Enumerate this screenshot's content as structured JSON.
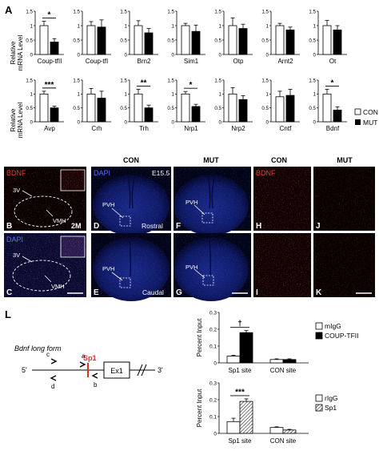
{
  "panel_letters": {
    "A": "A",
    "B": "B",
    "C": "C",
    "D": "D",
    "E": "E",
    "F": "F",
    "G": "G",
    "H": "H",
    "I": "I",
    "J": "J",
    "K": "K",
    "L": "L"
  },
  "panel_a": {
    "ylabel_line1": "Relative",
    "ylabel_line2": "mRNA Level",
    "legend": {
      "con": "CON",
      "mut": "MUT"
    }
  },
  "micrographs": {
    "b_stain": "BDNF",
    "c_stain": "DAPI",
    "d_stain": "DAPI",
    "h_stain": "BDNF",
    "b_age": "2M",
    "d_age": "E15.5",
    "region_3v": "3V",
    "region_vmh": "VMH",
    "region_pvh": "PVH",
    "rostral": "Rostral",
    "caudal": "Caudal",
    "col_con": "CON",
    "col_mut": "MUT",
    "col_con2": "CON",
    "col_mut2": "MUT"
  },
  "diagram_l": {
    "title": "Bdnf long form",
    "five_prime": "5'",
    "three_prime": "3'",
    "sp1_site": "Sp1",
    "exon": "Ex1",
    "primer_a": "a",
    "primer_b": "b",
    "primer_c": "c",
    "primer_d": "d"
  },
  "chart_data": [
    {
      "type": "bar",
      "gene": "Coup-tfII",
      "categories": [
        "CON",
        "MUT"
      ],
      "values": [
        1.0,
        0.43
      ],
      "errors": [
        0.15,
        0.12
      ],
      "sig": "*",
      "ylim": [
        0,
        1.5
      ],
      "yticks": [
        "0",
        "0.5",
        "1",
        "1.5"
      ]
    },
    {
      "type": "bar",
      "gene": "Coup-tfI",
      "categories": [
        "CON",
        "MUT"
      ],
      "values": [
        1.0,
        0.95
      ],
      "errors": [
        0.14,
        0.25
      ],
      "sig": "",
      "ylim": [
        0,
        1.5
      ],
      "yticks": [
        "0",
        "0.5",
        "1",
        "1.5"
      ]
    },
    {
      "type": "bar",
      "gene": "Brn2",
      "categories": [
        "CON",
        "MUT"
      ],
      "values": [
        1.0,
        0.75
      ],
      "errors": [
        0.17,
        0.15
      ],
      "sig": "",
      "ylim": [
        0,
        1.5
      ],
      "yticks": [
        "0",
        "0.5",
        "1",
        "1.5"
      ]
    },
    {
      "type": "bar",
      "gene": "Sim1",
      "categories": [
        "CON",
        "MUT"
      ],
      "values": [
        1.0,
        0.8
      ],
      "errors": [
        0.08,
        0.22
      ],
      "sig": "",
      "ylim": [
        0,
        1.5
      ],
      "yticks": [
        "0",
        "0.5",
        "1",
        "1.5"
      ]
    },
    {
      "type": "bar",
      "gene": "Otp",
      "categories": [
        "CON",
        "MUT"
      ],
      "values": [
        1.0,
        0.9
      ],
      "errors": [
        0.27,
        0.15
      ],
      "sig": "",
      "ylim": [
        0,
        1.5
      ],
      "yticks": [
        "0",
        "0.5",
        "1",
        "1.5"
      ]
    },
    {
      "type": "bar",
      "gene": "Arnt2",
      "categories": [
        "CON",
        "MUT"
      ],
      "values": [
        1.0,
        0.85
      ],
      "errors": [
        0.08,
        0.1
      ],
      "sig": "",
      "ylim": [
        0,
        1.5
      ],
      "yticks": [
        "0",
        "0.5",
        "1",
        "1.5"
      ]
    },
    {
      "type": "bar",
      "gene": "Ot",
      "categories": [
        "CON",
        "MUT"
      ],
      "values": [
        1.0,
        0.85
      ],
      "errors": [
        0.18,
        0.15
      ],
      "sig": "",
      "ylim": [
        0,
        1.5
      ],
      "yticks": [
        "0",
        "0.5",
        "1",
        "1.5"
      ]
    },
    {
      "type": "bar",
      "gene": "Avp",
      "categories": [
        "CON",
        "MUT"
      ],
      "values": [
        1.0,
        0.5
      ],
      "errors": [
        0.1,
        0.06
      ],
      "sig": "***",
      "ylim": [
        0,
        1.5
      ],
      "yticks": [
        "0",
        "0.5",
        "1",
        "1.5"
      ]
    },
    {
      "type": "bar",
      "gene": "Crh",
      "categories": [
        "CON",
        "MUT"
      ],
      "values": [
        1.0,
        0.85
      ],
      "errors": [
        0.2,
        0.25
      ],
      "sig": "",
      "ylim": [
        0,
        1.5
      ],
      "yticks": [
        "0",
        "0.5",
        "1",
        "1.5"
      ]
    },
    {
      "type": "bar",
      "gene": "Trh",
      "categories": [
        "CON",
        "MUT"
      ],
      "values": [
        1.0,
        0.5
      ],
      "errors": [
        0.17,
        0.1
      ],
      "sig": "**",
      "ylim": [
        0,
        1.5
      ],
      "yticks": [
        "0",
        "0.5",
        "1",
        "1.5"
      ]
    },
    {
      "type": "bar",
      "gene": "Nrp1",
      "categories": [
        "CON",
        "MUT"
      ],
      "values": [
        1.0,
        0.55
      ],
      "errors": [
        0.09,
        0.08
      ],
      "sig": "*",
      "ylim": [
        0,
        1.5
      ],
      "yticks": [
        "0",
        "0.5",
        "1",
        "1.5"
      ]
    },
    {
      "type": "bar",
      "gene": "Nrp2",
      "categories": [
        "CON",
        "MUT"
      ],
      "values": [
        1.0,
        0.8
      ],
      "errors": [
        0.23,
        0.14
      ],
      "sig": "",
      "ylim": [
        0,
        1.5
      ],
      "yticks": [
        "0",
        "0.5",
        "1",
        "1.5"
      ]
    },
    {
      "type": "bar",
      "gene": "Cntf",
      "categories": [
        "CON",
        "MUT"
      ],
      "values": [
        0.9,
        0.95
      ],
      "errors": [
        0.2,
        0.22
      ],
      "sig": "",
      "ylim": [
        0,
        1.5
      ],
      "yticks": [
        "0",
        "0.5",
        "1",
        "1.5"
      ]
    },
    {
      "type": "bar",
      "gene": "Bdnf",
      "categories": [
        "CON",
        "MUT"
      ],
      "values": [
        1.0,
        0.42
      ],
      "errors": [
        0.17,
        0.12
      ],
      "sig": "*",
      "ylim": [
        0,
        1.5
      ],
      "yticks": [
        "0",
        "0.5",
        "1",
        "1.5"
      ]
    },
    {
      "type": "bar",
      "title": "",
      "ylabel": "Percent Input",
      "categories": [
        "Sp1 site",
        "CON site"
      ],
      "series": [
        {
          "name": "mIgG",
          "values": [
            0.04,
            0.02
          ],
          "errors": [
            0.005,
            0.004
          ]
        },
        {
          "name": "COUP-TFII",
          "values": [
            0.18,
            0.02
          ],
          "errors": [
            0.012,
            0.004
          ]
        }
      ],
      "sig": "†",
      "ylim": [
        0,
        0.3
      ],
      "yticks": [
        "0",
        "0.1",
        "0.2",
        "0.3"
      ]
    },
    {
      "type": "bar",
      "title": "",
      "ylabel": "Percent Input",
      "categories": [
        "Sp1 site",
        "CON site"
      ],
      "series": [
        {
          "name": "rIgG",
          "values": [
            0.07,
            0.035
          ],
          "errors": [
            0.02,
            0.004
          ]
        },
        {
          "name": "Sp1",
          "values": [
            0.19,
            0.02
          ],
          "errors": [
            0.015,
            0.004
          ]
        }
      ],
      "sig": "***",
      "ylim": [
        0,
        0.3
      ],
      "yticks": [
        "0",
        "0.1",
        "0.2",
        "0.3"
      ]
    }
  ]
}
